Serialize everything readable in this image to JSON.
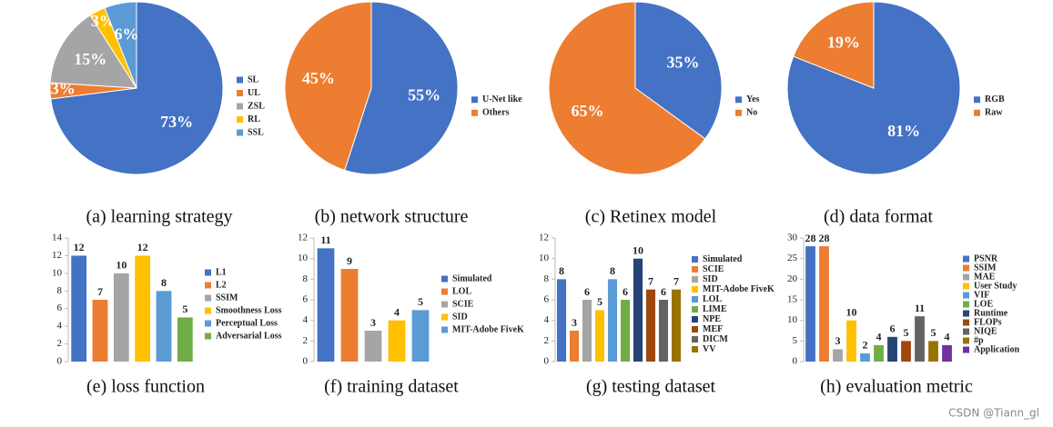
{
  "chart_data": [
    {
      "type": "pie",
      "title": "(a) learning strategy",
      "categories": [
        "SL",
        "UL",
        "ZSL",
        "RL",
        "SSL"
      ],
      "values": [
        73,
        3,
        15,
        3,
        6
      ],
      "value_labels": [
        "73%",
        "3%",
        "15%",
        "3%",
        "6%"
      ],
      "colors": [
        "#4472c4",
        "#ed7d31",
        "#a5a5a5",
        "#ffc000",
        "#5b9bd5"
      ]
    },
    {
      "type": "pie",
      "title": "(b) network structure",
      "categories": [
        "U-Net like",
        "Others"
      ],
      "values": [
        55,
        45
      ],
      "value_labels": [
        "55%",
        "45%"
      ],
      "colors": [
        "#4472c4",
        "#ed7d31"
      ]
    },
    {
      "type": "pie",
      "title": "(c) Retinex model",
      "categories": [
        "Yes",
        "No"
      ],
      "values": [
        35,
        65
      ],
      "value_labels": [
        "35%",
        "65%"
      ],
      "colors": [
        "#4472c4",
        "#ed7d31"
      ]
    },
    {
      "type": "pie",
      "title": "(d) data format",
      "categories": [
        "RGB",
        "Raw"
      ],
      "values": [
        81,
        19
      ],
      "value_labels": [
        "81%",
        "19%"
      ],
      "colors": [
        "#4472c4",
        "#ed7d31"
      ]
    },
    {
      "type": "bar",
      "title": "(e) loss function",
      "categories": [
        "L1",
        "L2",
        "SSIM",
        "Smoothness Loss",
        "Perceptual Loss",
        "Adversarial Loss"
      ],
      "values": [
        12,
        7,
        10,
        12,
        8,
        5
      ],
      "colors": [
        "#4472c4",
        "#ed7d31",
        "#a5a5a5",
        "#ffc000",
        "#5b9bd5",
        "#70ad47"
      ],
      "ylim": [
        0,
        14
      ],
      "yticks": [
        0,
        2,
        4,
        6,
        8,
        10,
        12,
        14
      ]
    },
    {
      "type": "bar",
      "title": "(f) training dataset",
      "categories": [
        "Simulated",
        "LOL",
        "SCIE",
        "SID",
        "MIT-Adobe FiveK"
      ],
      "values": [
        11,
        9,
        3,
        4,
        5
      ],
      "colors": [
        "#4472c4",
        "#ed7d31",
        "#a5a5a5",
        "#ffc000",
        "#5b9bd5"
      ],
      "ylim": [
        0,
        12
      ],
      "yticks": [
        0,
        2,
        4,
        6,
        8,
        10,
        12
      ]
    },
    {
      "type": "bar",
      "title": "(g) testing dataset",
      "categories": [
        "Simulated",
        "SCIE",
        "SID",
        "MIT-Adobe FiveK",
        "LOL",
        "LIME",
        "NPE",
        "MEF",
        "DICM",
        "VV"
      ],
      "values": [
        8,
        3,
        6,
        5,
        8,
        6,
        10,
        7,
        6,
        7
      ],
      "colors": [
        "#4472c4",
        "#ed7d31",
        "#a5a5a5",
        "#ffc000",
        "#5b9bd5",
        "#70ad47",
        "#264478",
        "#9e480e",
        "#636363",
        "#997300"
      ],
      "ylim": [
        0,
        12
      ],
      "yticks": [
        0,
        2,
        4,
        6,
        8,
        10,
        12
      ]
    },
    {
      "type": "bar",
      "title": "(h) evaluation metric",
      "categories": [
        "PSNR",
        "SSIM",
        "MAE",
        "User Study",
        "VIF",
        "LOE",
        "Runtime",
        "FLOPs",
        "NIQE",
        "#p",
        "Application"
      ],
      "values": [
        28,
        28,
        3,
        10,
        2,
        4,
        6,
        5,
        11,
        5,
        4
      ],
      "colors": [
        "#4472c4",
        "#ed7d31",
        "#a5a5a5",
        "#ffc000",
        "#5b9bd5",
        "#70ad47",
        "#264478",
        "#9e480e",
        "#636363",
        "#997300",
        "#7030a0"
      ],
      "ylim": [
        0,
        30
      ],
      "yticks": [
        0,
        5,
        10,
        15,
        20,
        25,
        30
      ]
    }
  ],
  "watermark": "CSDN @Tiann_gl"
}
